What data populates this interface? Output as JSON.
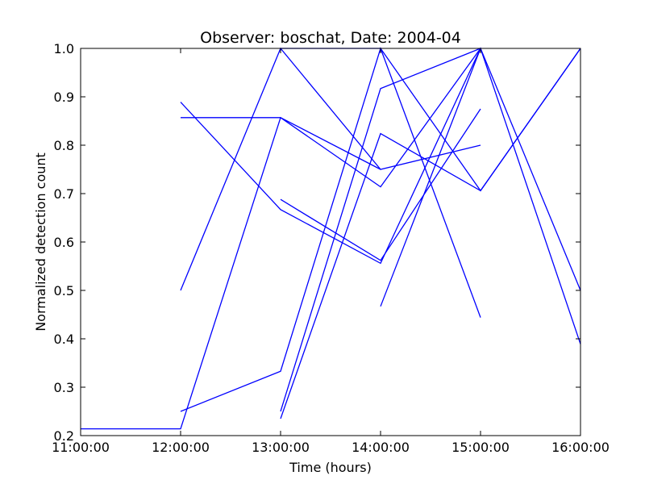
{
  "chart_data": {
    "type": "line",
    "title": "Observer: boschat, Date: 2004-04",
    "xlabel": "Time (hours)",
    "ylabel": "Normalized detection count",
    "xlim": [
      11,
      16
    ],
    "ylim": [
      0.2,
      1.0
    ],
    "x_ticks": [
      11,
      12,
      13,
      14,
      15,
      16
    ],
    "x_tick_labels": [
      "11:00:00",
      "12:00:00",
      "13:00:00",
      "14:00:00",
      "15:00:00",
      "16:00:00"
    ],
    "y_ticks": [
      0.2,
      0.3,
      0.4,
      0.5,
      0.6,
      0.7,
      0.8,
      0.9,
      1.0
    ],
    "y_tick_labels": [
      "0.2",
      "0.3",
      "0.4",
      "0.5",
      "0.6",
      "0.7",
      "0.8",
      "0.9",
      "1.0"
    ],
    "grid": false,
    "line_color": "#0000ff",
    "series": [
      {
        "x": [
          11,
          12,
          13,
          14
        ],
        "y": [
          0.214,
          0.214,
          0.857,
          0.75
        ]
      },
      {
        "x": [
          12,
          13,
          14,
          15
        ],
        "y": [
          0.857,
          0.857,
          0.714,
          1.0
        ]
      },
      {
        "x": [
          12,
          13,
          14,
          15
        ],
        "y": [
          0.889,
          0.667,
          0.556,
          1.0
        ]
      },
      {
        "x": [
          12,
          13,
          14,
          15
        ],
        "y": [
          0.5,
          1.0,
          0.75,
          0.8
        ]
      },
      {
        "x": [
          12,
          13,
          14,
          15
        ],
        "y": [
          0.25,
          0.333,
          1.0,
          0.444
        ]
      },
      {
        "x": [
          13,
          14,
          15,
          16
        ],
        "y": [
          1.0,
          1.0,
          0.706,
          1.0
        ]
      },
      {
        "x": [
          13,
          14,
          15,
          16
        ],
        "y": [
          0.25,
          0.917,
          1.0,
          0.5
        ]
      },
      {
        "x": [
          13,
          14,
          15
        ],
        "y": [
          0.688,
          0.562,
          0.875
        ]
      },
      {
        "x": [
          13,
          14,
          15,
          16
        ],
        "y": [
          0.235,
          0.824,
          0.706,
          1.0
        ]
      },
      {
        "x": [
          14,
          15,
          16
        ],
        "y": [
          0.467,
          1.0,
          0.389
        ]
      }
    ]
  }
}
